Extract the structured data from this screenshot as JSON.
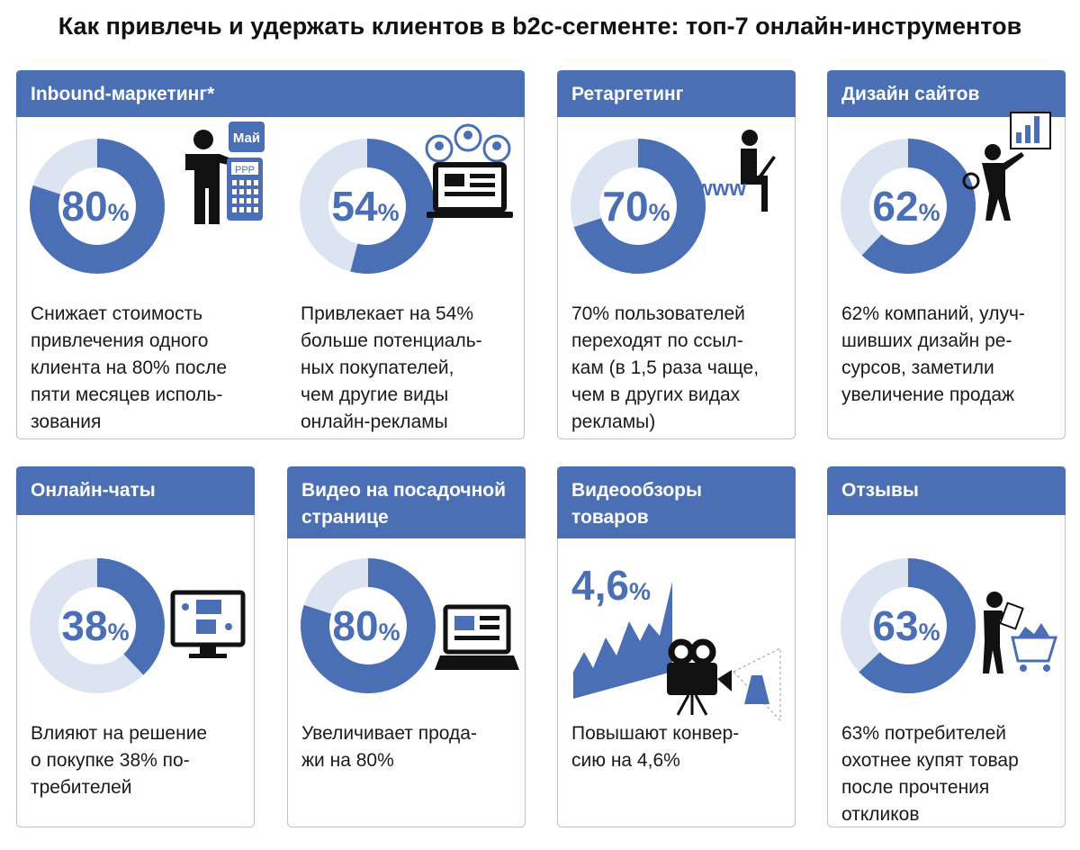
{
  "header": {
    "title": "Как привлечь и удержать клиентов в b2c-сегменте: топ-7 онлайн-инструментов"
  },
  "cards": [
    {
      "title": [
        "Inbound-маркетинг*"
      ],
      "items": [
        {
          "type": "donut",
          "value": 80,
          "unit": "%",
          "icon_labels": [
            "Май",
            "РРР"
          ],
          "text": [
            "Снижает стоимость",
            "привлечения одного",
            "клиента на 80% после",
            "пяти месяцев исполь-",
            "зования"
          ]
        },
        {
          "type": "donut",
          "value": 54,
          "unit": "%",
          "text": [
            "Привлекает на 54%",
            "больше потенциаль-",
            "ных покупателей,",
            "чем другие виды",
            "онлайн-рекламы"
          ]
        }
      ]
    },
    {
      "title": [
        "Ретаргетинг"
      ],
      "items": [
        {
          "type": "donut",
          "value": 70,
          "unit": "%",
          "icon_labels": [
            "www"
          ],
          "text": [
            "70% пользователей",
            "переходят по ссыл-",
            "кам (в 1,5 раза чаще,",
            "чем в других видах",
            "рекламы)"
          ]
        }
      ]
    },
    {
      "title": [
        "Дизайн сайтов"
      ],
      "items": [
        {
          "type": "donut",
          "value": 62,
          "unit": "%",
          "text": [
            "62% компаний, улуч-",
            "шивших дизайн ре-",
            "сурсов, заметили",
            "увеличение продаж"
          ]
        }
      ]
    },
    {
      "title": [
        "Онлайн-чаты"
      ],
      "items": [
        {
          "type": "donut",
          "value": 38,
          "unit": "%",
          "text": [
            "Влияют на решение",
            "о покупке 38% по-",
            "требителей"
          ]
        }
      ]
    },
    {
      "title": [
        "Видео на посадочной",
        "странице"
      ],
      "items": [
        {
          "type": "donut",
          "value": 80,
          "unit": "%",
          "text": [
            "Увеличивает прода-",
            "жи на 80%"
          ]
        }
      ]
    },
    {
      "title": [
        "Видеообзоры",
        "товаров"
      ],
      "items": [
        {
          "type": "area",
          "value": 4.6,
          "value_label": "4,6",
          "unit": "%",
          "text": [
            "Повышают конвер-",
            "сию на 4,6%"
          ]
        }
      ]
    },
    {
      "title": [
        "Отзывы"
      ],
      "items": [
        {
          "type": "donut",
          "value": 63,
          "unit": "%",
          "text": [
            "63% потребителей",
            "охотнее купят товар",
            "после прочтения",
            "откликов"
          ]
        }
      ]
    }
  ]
}
